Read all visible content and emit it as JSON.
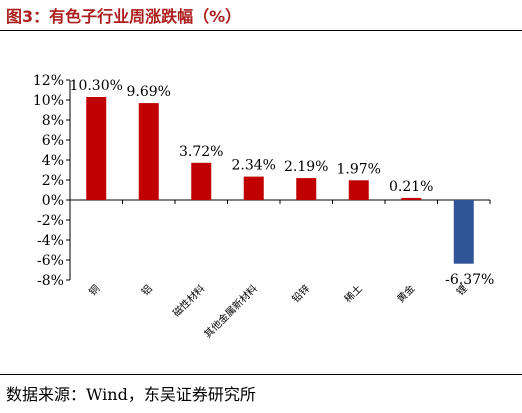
{
  "header": {
    "title": "图3：有色子行业周涨跌幅（%）"
  },
  "footer": {
    "source": "数据来源：Wind，东吴证券研究所"
  },
  "colors": {
    "positive": "#c00000",
    "negative": "#2f5597",
    "title": "#ad1f1f"
  },
  "chart_data": {
    "type": "bar",
    "categories": [
      "铜",
      "铝",
      "磁性材料",
      "其他金属新材料",
      "铅锌",
      "稀土",
      "黄金",
      "锂"
    ],
    "values": [
      10.3,
      9.69,
      3.72,
      2.34,
      2.19,
      1.97,
      0.21,
      -6.37
    ],
    "value_labels": [
      "10.30%",
      "9.69%",
      "3.72%",
      "2.34%",
      "2.19%",
      "1.97%",
      "0.21%",
      "-6.37%"
    ],
    "yticks": [
      12,
      10,
      8,
      6,
      4,
      2,
      0,
      -2,
      -4,
      -6,
      -8
    ],
    "ytick_labels": [
      "12%",
      "10%",
      "8%",
      "6%",
      "4%",
      "2%",
      "0%",
      "-2%",
      "-4%",
      "-6%",
      "-8%"
    ],
    "ylim": [
      -8,
      12
    ],
    "grid": false,
    "legend": "none"
  }
}
